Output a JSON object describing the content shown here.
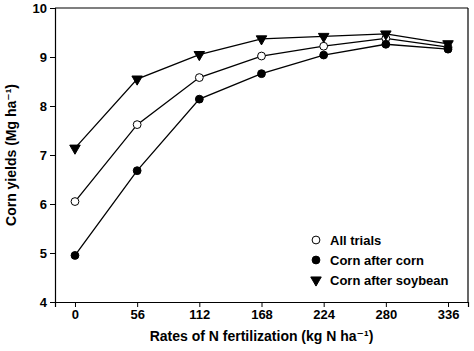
{
  "chart_data": {
    "type": "line",
    "x_label": "Rates of N fertilization (kg N ha⁻¹)",
    "y_label": "Corn yields (Mg ha⁻¹)",
    "x": [
      0,
      56,
      112,
      168,
      224,
      280,
      336
    ],
    "xlim": [
      -18,
      354
    ],
    "xticks": [
      0,
      56,
      112,
      168,
      224,
      280,
      336
    ],
    "ylim": [
      4,
      10
    ],
    "yticks": [
      4,
      5,
      6,
      7,
      8,
      9,
      10
    ],
    "legend": "lower right",
    "series": [
      {
        "name": "All trials",
        "color": "#000000",
        "marker": "circle-open",
        "line_style": "solid",
        "values": [
          6.05,
          7.62,
          8.58,
          9.02,
          9.22,
          9.38,
          9.2
        ]
      },
      {
        "name": "Corn after corn",
        "color": "#000000",
        "marker": "circle",
        "line_style": "solid",
        "values": [
          4.95,
          6.68,
          8.14,
          8.66,
          9.04,
          9.26,
          9.16
        ]
      },
      {
        "name": "Corn after soybean",
        "color": "#000000",
        "marker": "triangle-down",
        "line_style": "solid",
        "values": [
          7.14,
          8.55,
          9.05,
          9.37,
          9.42,
          9.47,
          9.27
        ]
      }
    ]
  }
}
